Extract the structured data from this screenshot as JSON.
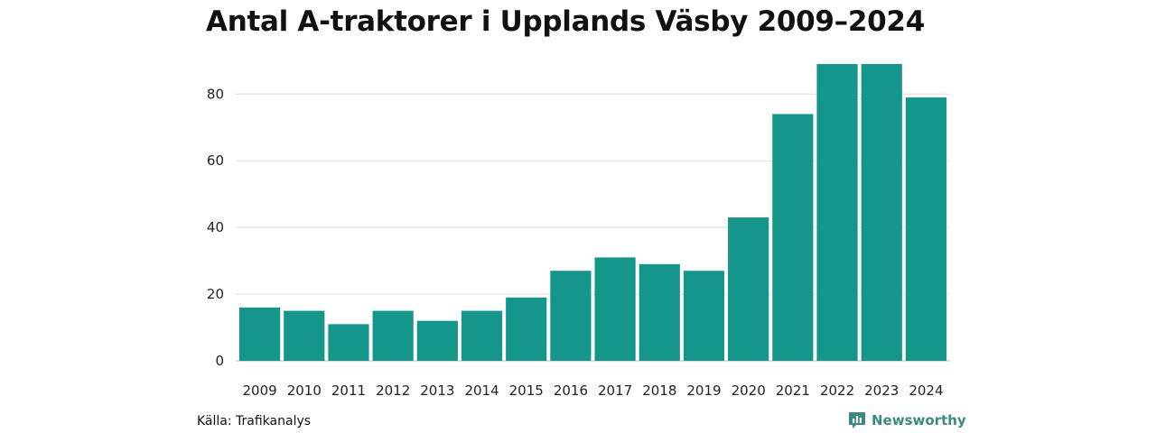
{
  "title": "Antal A-traktorer i Upplands Väsby 2009–2024",
  "source": "Källa: Trafikanalys",
  "brand": {
    "name": "Newsworthy",
    "icon": "newsworthy-logo-icon",
    "color": "#3a8a80"
  },
  "colors": {
    "bar": "#14968a",
    "grid": "#dddddd",
    "axis": "#bbbbbb"
  },
  "chart_data": {
    "type": "bar",
    "title": "Antal A-traktorer i Upplands Väsby 2009–2024",
    "xlabel": "",
    "ylabel": "",
    "categories": [
      "2009",
      "2010",
      "2011",
      "2012",
      "2013",
      "2014",
      "2015",
      "2016",
      "2017",
      "2018",
      "2019",
      "2020",
      "2021",
      "2022",
      "2023",
      "2024"
    ],
    "values": [
      16,
      15,
      11,
      15,
      12,
      15,
      19,
      27,
      31,
      29,
      27,
      43,
      74,
      89,
      89,
      79
    ],
    "ylim": [
      0,
      89
    ],
    "yticks": [
      0,
      20,
      40,
      60,
      80
    ],
    "grid": true,
    "legend": "none"
  }
}
